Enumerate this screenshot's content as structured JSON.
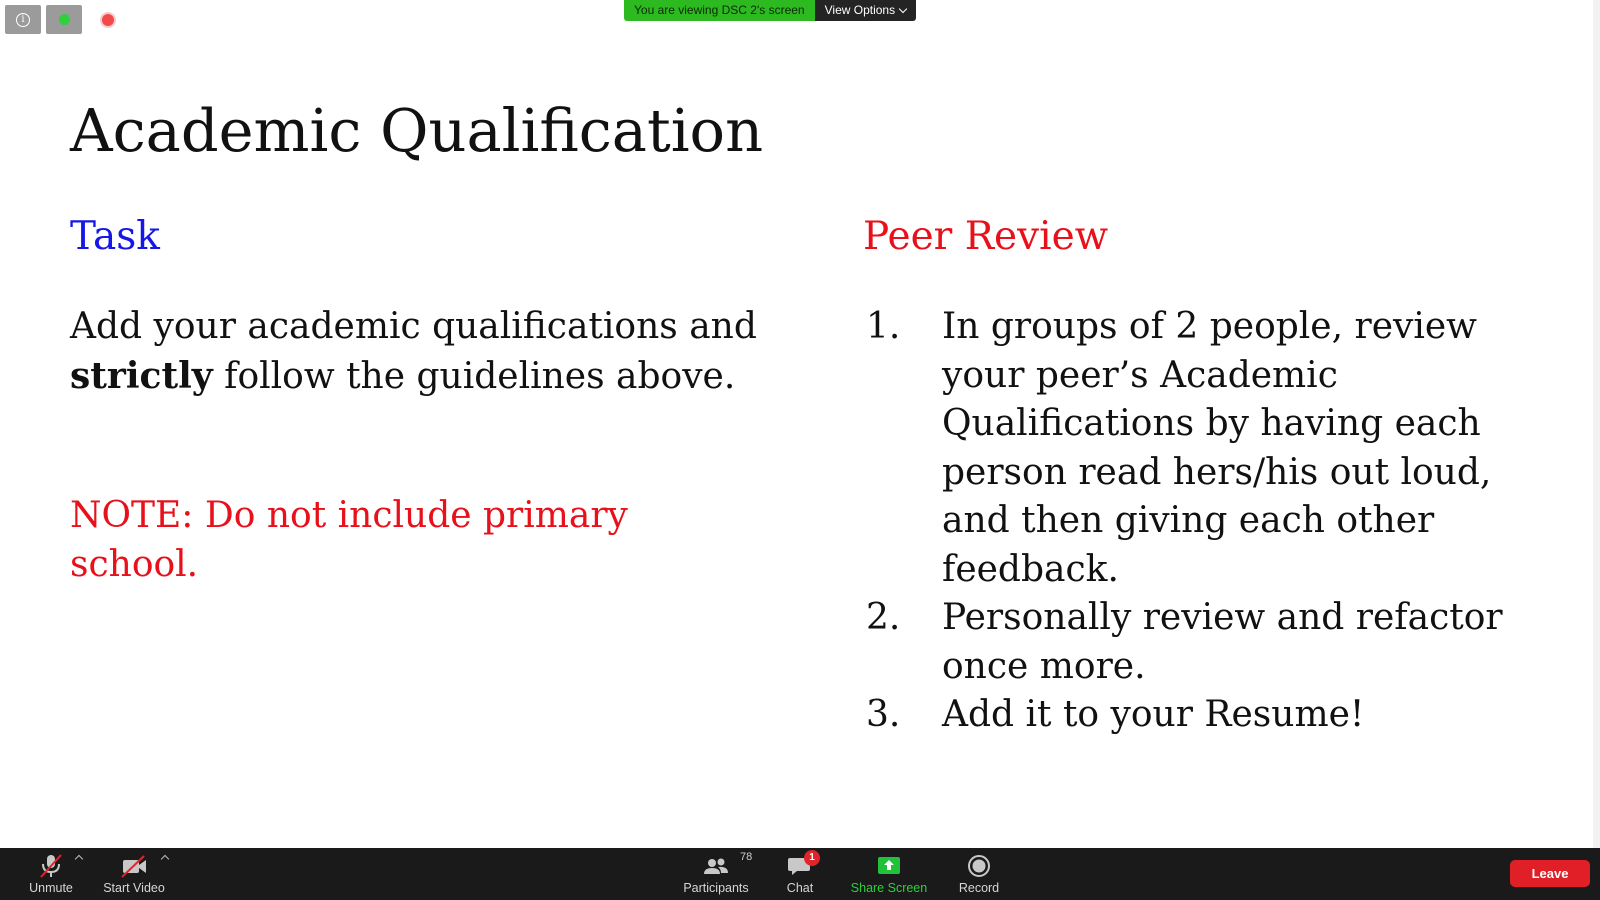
{
  "window": {
    "viewing_banner": "You are viewing DSC 2's screen",
    "view_options": "View Options"
  },
  "slide": {
    "title": "Academic Qualification",
    "task_heading": "Task",
    "peer_heading": "Peer Review",
    "task_body_before": "Add your academic qualifications and ",
    "task_body_bold": "strictly",
    "task_body_after": " follow the guidelines above.",
    "note": "NOTE: Do not include primary school.",
    "peer_items": [
      {
        "num": "1.",
        "text": "In groups of 2 people, review your peer’s Academic Qualifications by having each person read hers/his out loud, and then giving each other feedback."
      },
      {
        "num": "2.",
        "text": "Personally review and refactor once more."
      },
      {
        "num": "3.",
        "text": "Add it to your Resume!"
      }
    ],
    "colors": {
      "task": "#1616e8",
      "peer": "#e8101a",
      "note": "#e8101a"
    }
  },
  "toolbar": {
    "unmute": "Unmute",
    "start_video": "Start Video",
    "participants": "Participants",
    "participants_count": "78",
    "chat": "Chat",
    "chat_badge": "1",
    "share_screen": "Share Screen",
    "record": "Record",
    "leave": "Leave"
  },
  "icons": [
    "info-icon",
    "mic-muted-icon",
    "video-off-icon",
    "participants-icon",
    "chat-icon",
    "share-screen-icon",
    "record-icon"
  ]
}
